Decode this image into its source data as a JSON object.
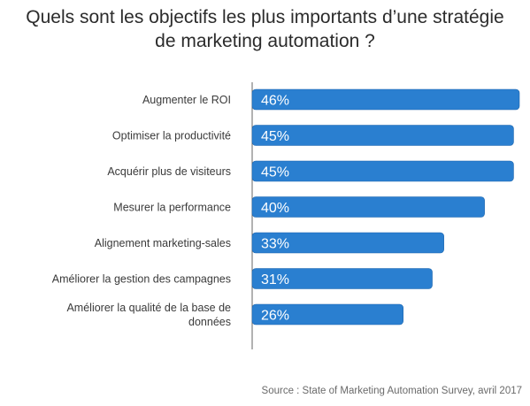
{
  "chart_data": {
    "type": "bar",
    "orientation": "horizontal",
    "title": "Quels sont les objectifs les plus importants d’une stratégie de marketing automation ?",
    "title_lines": [
      "Quels sont les objectifs les plus importants d’une stratégie",
      "de marketing automation ?"
    ],
    "categories": [
      [
        "Augmenter le ROI"
      ],
      [
        "Optimiser la productivité"
      ],
      [
        "Acquérir plus de visiteurs"
      ],
      [
        "Mesurer la performance"
      ],
      [
        "Alignement marketing-sales"
      ],
      [
        "Améliorer la gestion des campagnes"
      ],
      [
        "Améliorer la qualité de la base de",
        "données"
      ]
    ],
    "values": [
      46,
      45,
      45,
      40,
      33,
      31,
      26
    ],
    "value_labels": [
      "46%",
      "45%",
      "45%",
      "40%",
      "33%",
      "31%",
      "26%"
    ],
    "xlim": [
      0,
      46
    ],
    "bar_color": "#2a7fd0",
    "grid": false,
    "source": "Source : State of Marketing Automation Survey, avril 2017"
  }
}
